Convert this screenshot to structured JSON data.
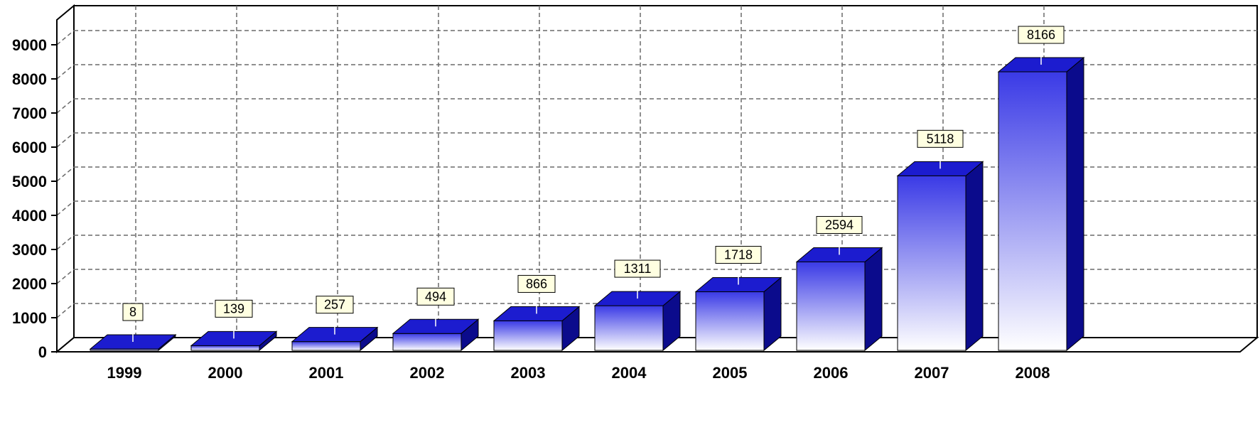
{
  "chart_data": {
    "type": "bar",
    "style": "3d",
    "categories": [
      "1999",
      "2000",
      "2001",
      "2002",
      "2003",
      "2004",
      "2005",
      "2006",
      "2007",
      "2008"
    ],
    "values": [
      8,
      139,
      257,
      494,
      866,
      1311,
      1718,
      2594,
      5118,
      8166
    ],
    "title": "",
    "xlabel": "",
    "ylabel": "",
    "ylim": [
      0,
      9000
    ],
    "yticks": [
      0,
      1000,
      2000,
      3000,
      4000,
      5000,
      6000,
      7000,
      8000,
      9000
    ],
    "grid": true,
    "legend": "none",
    "data_labels": true
  },
  "colors": {
    "bar_top": "#1c1ccf",
    "bar_face_dark": "#3a3ae6",
    "bar_face_light": "#ffffff",
    "bar_side": "#0b0b8c",
    "label_fill": "#ffffe1",
    "grid": "#6a6a6a"
  }
}
